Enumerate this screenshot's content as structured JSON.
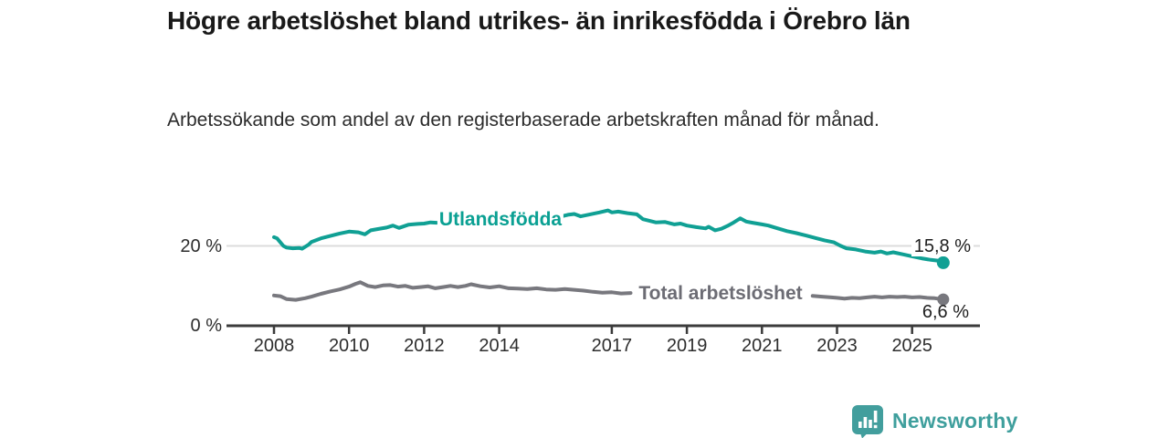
{
  "header": {
    "title": "Högre arbetslöshet bland utrikes- än inrikesfödda i Örebro län",
    "subtitle": "Arbetssökande som andel av den registerbaserade arbetskraften månad för månad."
  },
  "chart_data": {
    "type": "line",
    "unit": "%",
    "x_range": [
      2008,
      2025.83
    ],
    "y_range": [
      0,
      30
    ],
    "grid": "single-line-at-20",
    "legend_position": "inline-labels-on-lines",
    "x_ticks": [
      "2008",
      "2010",
      "2012",
      "2014",
      "2017",
      "2019",
      "2021",
      "2023",
      "2025"
    ],
    "x_tick_years": [
      2008,
      2010,
      2012,
      2014,
      2017,
      2019,
      2021,
      2023,
      2025
    ],
    "y_ticks": [
      {
        "value": 0,
        "label": "0 %"
      },
      {
        "value": 20,
        "label": "20 %"
      }
    ],
    "series": [
      {
        "name": "Utlandsfödda",
        "label": "Utlandsfödda",
        "color": "#10a094",
        "end_value": 15.8,
        "end_label": "15,8 %",
        "segments": [
          [
            [
              2008.0,
              22.2
            ],
            [
              2008.08,
              21.9
            ],
            [
              2008.25,
              20.0
            ],
            [
              2008.33,
              19.6
            ],
            [
              2008.5,
              19.4
            ],
            [
              2008.67,
              19.5
            ],
            [
              2008.75,
              19.3
            ],
            [
              2008.92,
              20.3
            ],
            [
              2009.0,
              21.0
            ],
            [
              2009.25,
              21.9
            ],
            [
              2009.5,
              22.5
            ],
            [
              2009.75,
              23.1
            ],
            [
              2010.0,
              23.6
            ],
            [
              2010.25,
              23.4
            ],
            [
              2010.42,
              22.9
            ],
            [
              2010.58,
              23.9
            ],
            [
              2010.75,
              24.2
            ],
            [
              2011.0,
              24.6
            ],
            [
              2011.17,
              25.1
            ],
            [
              2011.33,
              24.5
            ],
            [
              2011.58,
              25.3
            ],
            [
              2011.83,
              25.5
            ],
            [
              2012.0,
              25.6
            ],
            [
              2012.17,
              25.9
            ],
            [
              2012.33,
              25.8
            ]
          ],
          [
            [
              2015.7,
              27.5
            ],
            [
              2015.83,
              27.8
            ],
            [
              2016.0,
              28.0
            ],
            [
              2016.17,
              27.4
            ],
            [
              2016.42,
              27.9
            ],
            [
              2016.67,
              28.4
            ],
            [
              2016.9,
              28.9
            ],
            [
              2017.0,
              28.4
            ],
            [
              2017.17,
              28.6
            ],
            [
              2017.42,
              28.2
            ],
            [
              2017.67,
              27.9
            ],
            [
              2017.83,
              26.7
            ],
            [
              2018.0,
              26.3
            ],
            [
              2018.17,
              25.9
            ],
            [
              2018.42,
              26.0
            ],
            [
              2018.67,
              25.4
            ],
            [
              2018.83,
              25.6
            ],
            [
              2019.0,
              25.1
            ],
            [
              2019.25,
              24.7
            ],
            [
              2019.5,
              24.4
            ],
            [
              2019.58,
              24.8
            ],
            [
              2019.75,
              23.9
            ],
            [
              2019.92,
              24.3
            ],
            [
              2020.08,
              25.0
            ],
            [
              2020.25,
              25.9
            ],
            [
              2020.42,
              26.9
            ],
            [
              2020.58,
              26.1
            ],
            [
              2020.75,
              25.8
            ],
            [
              2021.0,
              25.4
            ],
            [
              2021.17,
              25.1
            ],
            [
              2021.42,
              24.4
            ],
            [
              2021.67,
              23.7
            ],
            [
              2021.92,
              23.2
            ],
            [
              2022.17,
              22.6
            ],
            [
              2022.42,
              22.0
            ],
            [
              2022.67,
              21.4
            ],
            [
              2022.92,
              20.9
            ],
            [
              2023.08,
              20.1
            ],
            [
              2023.25,
              19.4
            ],
            [
              2023.5,
              19.1
            ],
            [
              2023.75,
              18.6
            ],
            [
              2024.0,
              18.3
            ],
            [
              2024.17,
              18.6
            ],
            [
              2024.33,
              18.1
            ],
            [
              2024.5,
              18.4
            ],
            [
              2024.75,
              17.9
            ],
            [
              2025.0,
              17.4
            ],
            [
              2025.25,
              16.9
            ],
            [
              2025.5,
              16.5
            ],
            [
              2025.7,
              16.3
            ],
            [
              2025.83,
              15.8
            ]
          ]
        ]
      },
      {
        "name": "Total arbetslöshet",
        "label": "Total arbetslöshet",
        "color": "#78787e",
        "end_value": 6.6,
        "end_label": "6,6 %",
        "segments": [
          [
            [
              2008.0,
              7.6
            ],
            [
              2008.17,
              7.4
            ],
            [
              2008.33,
              6.7
            ],
            [
              2008.58,
              6.5
            ],
            [
              2008.83,
              6.9
            ],
            [
              2009.0,
              7.3
            ],
            [
              2009.25,
              8.0
            ],
            [
              2009.5,
              8.6
            ],
            [
              2009.75,
              9.1
            ],
            [
              2010.0,
              9.8
            ],
            [
              2010.17,
              10.5
            ],
            [
              2010.3,
              10.9
            ],
            [
              2010.5,
              10.0
            ],
            [
              2010.7,
              9.7
            ],
            [
              2010.9,
              10.1
            ],
            [
              2011.1,
              10.2
            ],
            [
              2011.3,
              9.8
            ],
            [
              2011.5,
              10.0
            ],
            [
              2011.7,
              9.5
            ],
            [
              2011.9,
              9.7
            ],
            [
              2012.1,
              9.9
            ],
            [
              2012.3,
              9.4
            ],
            [
              2012.5,
              9.7
            ],
            [
              2012.7,
              10.0
            ],
            [
              2012.9,
              9.7
            ],
            [
              2013.1,
              10.0
            ],
            [
              2013.25,
              10.4
            ],
            [
              2013.5,
              9.9
            ],
            [
              2013.75,
              9.6
            ],
            [
              2014.0,
              9.9
            ],
            [
              2014.25,
              9.4
            ],
            [
              2014.5,
              9.3
            ],
            [
              2014.75,
              9.2
            ],
            [
              2015.0,
              9.4
            ],
            [
              2015.25,
              9.1
            ],
            [
              2015.5,
              9.0
            ],
            [
              2015.75,
              9.2
            ],
            [
              2016.0,
              9.0
            ],
            [
              2016.25,
              8.8
            ],
            [
              2016.5,
              8.5
            ],
            [
              2016.75,
              8.3
            ],
            [
              2017.0,
              8.4
            ],
            [
              2017.25,
              8.1
            ],
            [
              2017.5,
              8.2
            ]
          ],
          [
            [
              2022.35,
              7.5
            ],
            [
              2022.6,
              7.3
            ],
            [
              2022.85,
              7.1
            ],
            [
              2023.0,
              7.0
            ],
            [
              2023.2,
              6.8
            ],
            [
              2023.4,
              7.0
            ],
            [
              2023.6,
              6.9
            ],
            [
              2023.8,
              7.1
            ],
            [
              2024.0,
              7.3
            ],
            [
              2024.2,
              7.1
            ],
            [
              2024.4,
              7.3
            ],
            [
              2024.6,
              7.2
            ],
            [
              2024.8,
              7.3
            ],
            [
              2025.0,
              7.1
            ],
            [
              2025.2,
              7.2
            ],
            [
              2025.4,
              7.0
            ],
            [
              2025.6,
              6.9
            ],
            [
              2025.83,
              6.6
            ]
          ]
        ]
      }
    ],
    "colors": {
      "grid_line": "#dcdcdc",
      "axis": "#3b3b3b",
      "background": "#ffffff"
    }
  },
  "footer": {
    "brand": "Newsworthy",
    "brand_color": "#3f9f9d",
    "icon": "newsworthy-chart-bubble-icon"
  }
}
